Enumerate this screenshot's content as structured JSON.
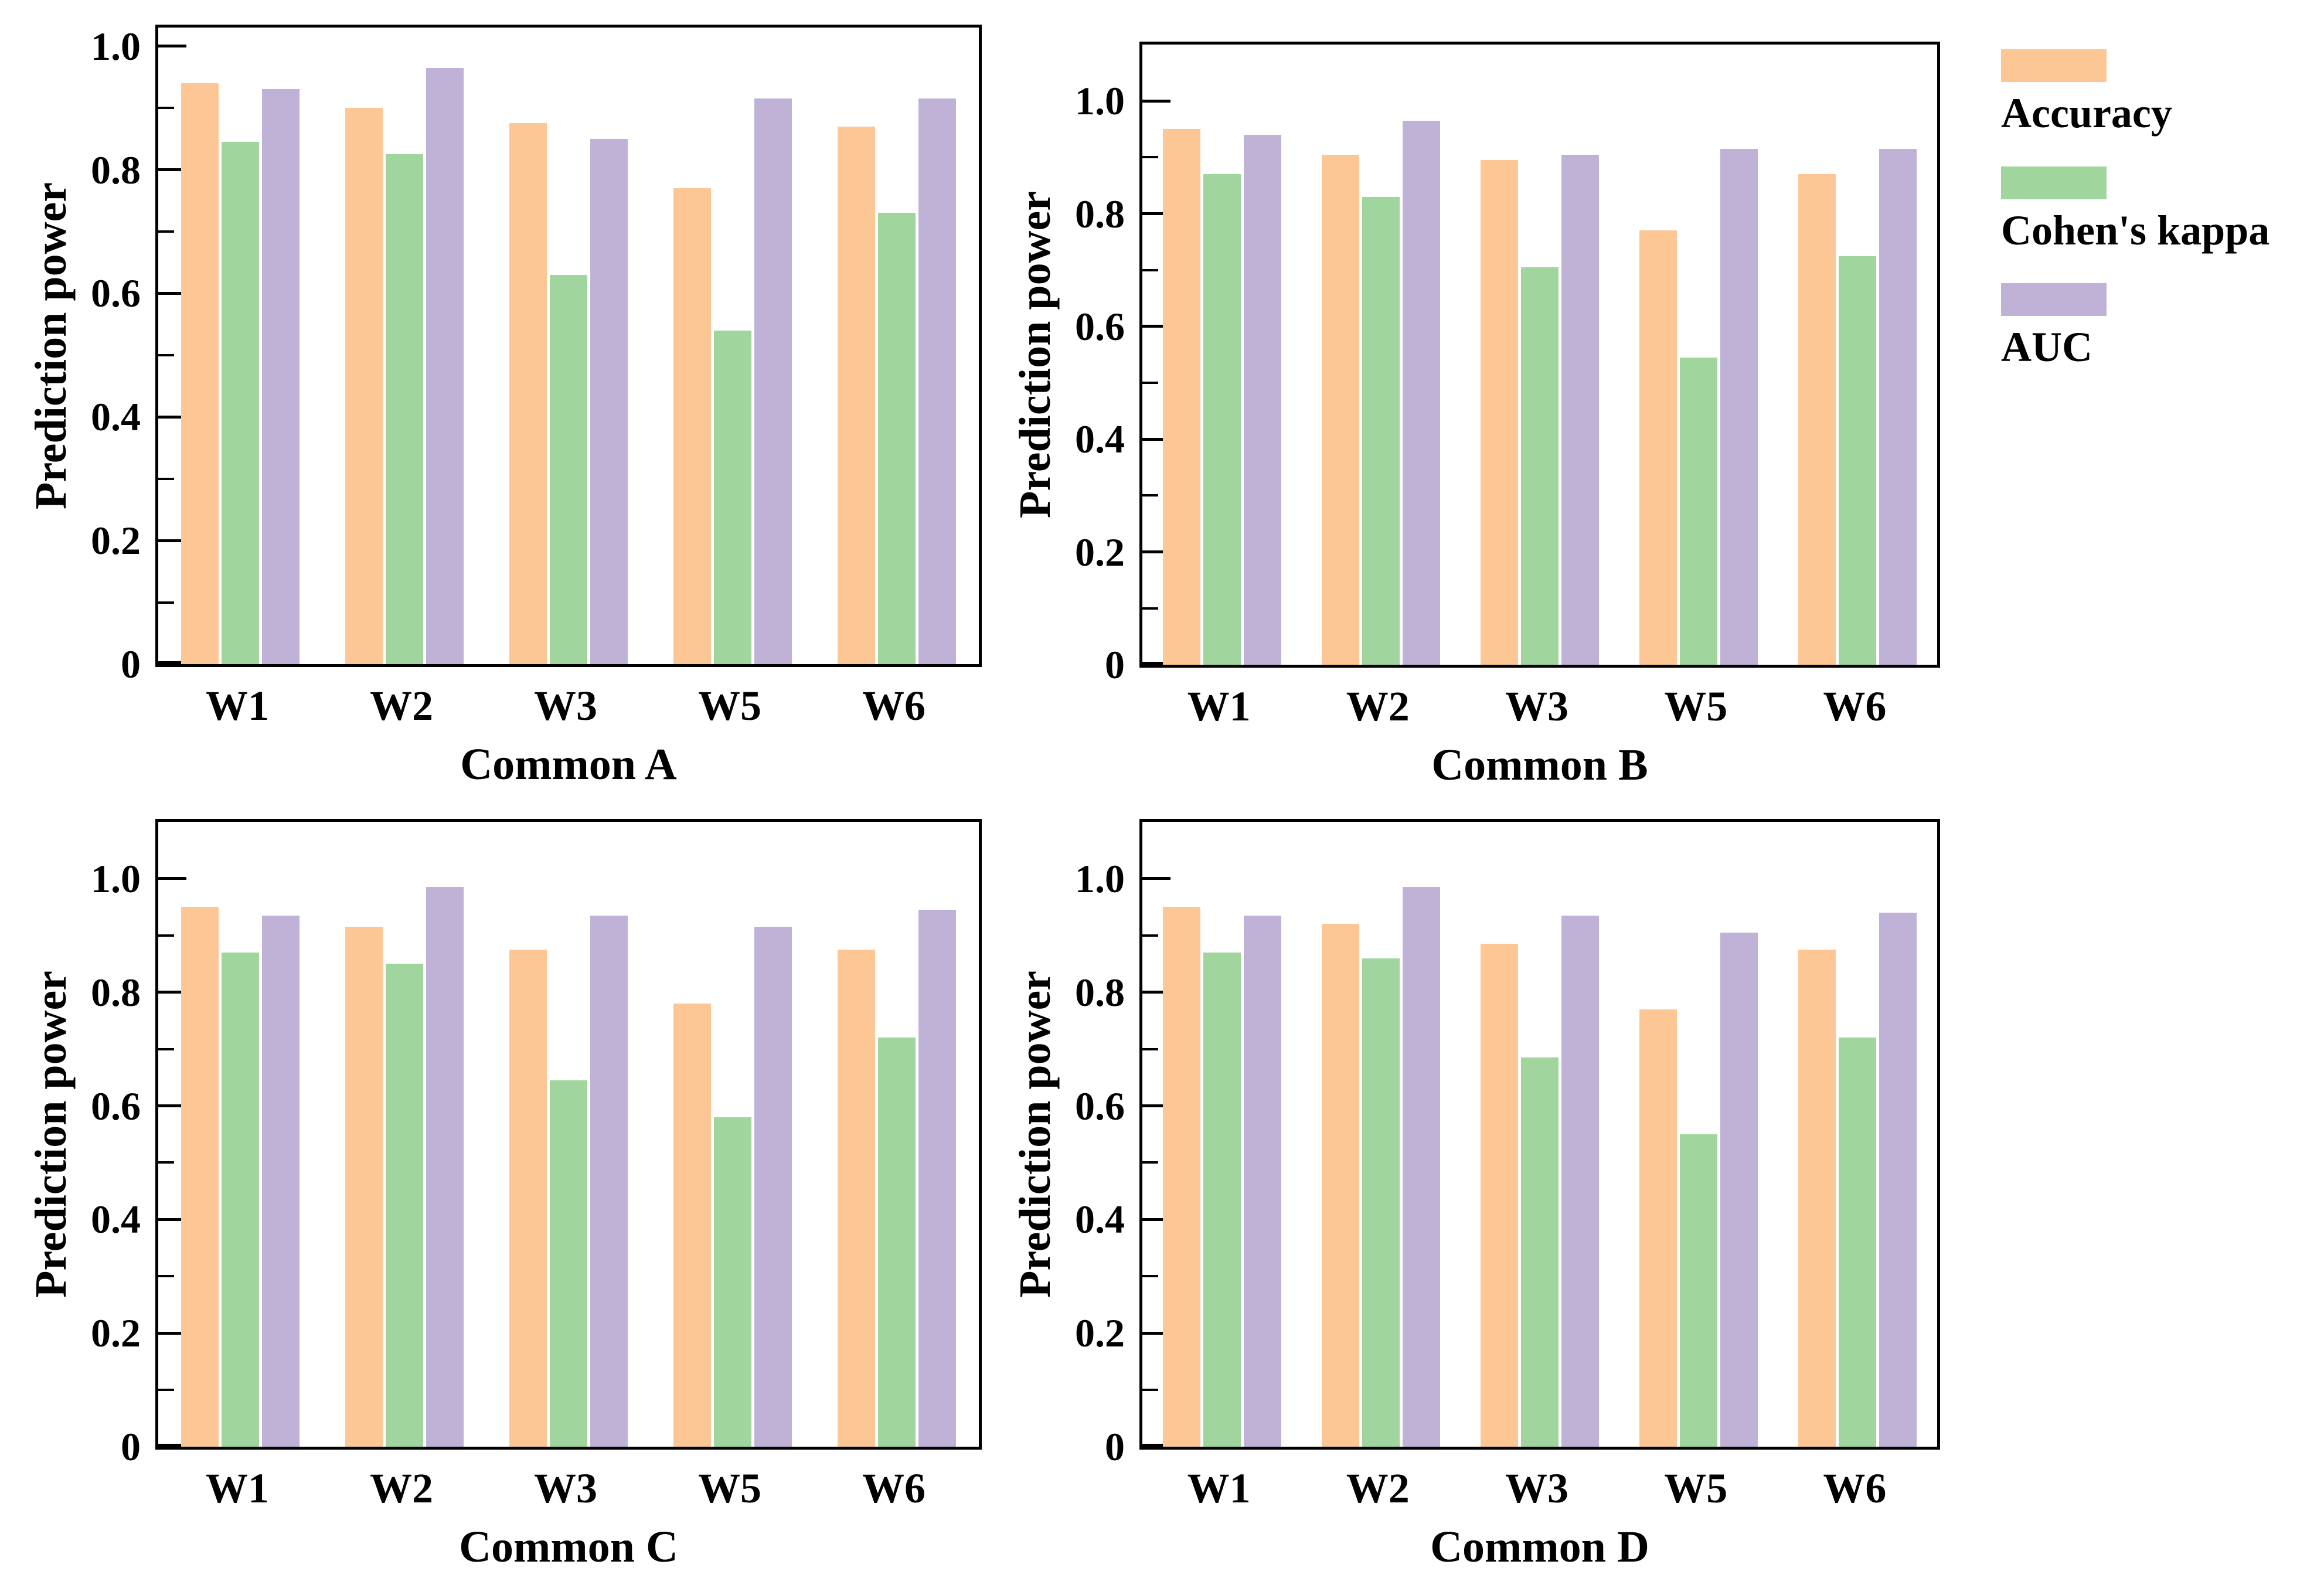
{
  "figure": {
    "background": "#ffffff",
    "ylabel": "Prediction power"
  },
  "legend": {
    "position": "right-outside",
    "items": [
      {
        "label": "Accuracy",
        "color": "#FCC795"
      },
      {
        "label": "Cohen's kappa",
        "color": "#A0D69D"
      },
      {
        "label": "AUC",
        "color": "#C0B2D6"
      }
    ]
  },
  "chart_data": [
    {
      "type": "bar",
      "xlabel": "Common A",
      "ylabel": "Prediction power",
      "categories": [
        "W1",
        "W2",
        "W3",
        "W5",
        "W6"
      ],
      "series": [
        {
          "name": "Accuracy",
          "values": [
            0.94,
            0.9,
            0.875,
            0.77,
            0.87
          ]
        },
        {
          "name": "Cohen's kappa",
          "values": [
            0.845,
            0.825,
            0.63,
            0.54,
            0.73
          ]
        },
        {
          "name": "AUC",
          "values": [
            0.93,
            0.965,
            0.85,
            0.915,
            0.915
          ]
        }
      ],
      "ylim": [
        0,
        1.03
      ],
      "yticks": [
        0,
        0.2,
        0.4,
        0.6,
        0.8,
        1.0
      ],
      "ytick_labels": [
        "0",
        "0.2",
        "0.4",
        "0.6",
        "0.8",
        "1.0"
      ],
      "yticks_minor": [
        0.1,
        0.3,
        0.5,
        0.7,
        0.9
      ],
      "grid": false
    },
    {
      "type": "bar",
      "xlabel": "Common B",
      "ylabel": "Prediction power",
      "categories": [
        "W1",
        "W2",
        "W3",
        "W5",
        "W6"
      ],
      "series": [
        {
          "name": "Accuracy",
          "values": [
            0.95,
            0.905,
            0.895,
            0.77,
            0.87
          ]
        },
        {
          "name": "Cohen's kappa",
          "values": [
            0.87,
            0.83,
            0.705,
            0.545,
            0.725
          ]
        },
        {
          "name": "AUC",
          "values": [
            0.94,
            0.965,
            0.905,
            0.915,
            0.915
          ]
        }
      ],
      "ylim": [
        0,
        1.1
      ],
      "yticks": [
        0,
        0.2,
        0.4,
        0.6,
        0.8,
        1.0
      ],
      "ytick_labels": [
        "0",
        "0.2",
        "0.4",
        "0.6",
        "0.8",
        "1.0"
      ],
      "yticks_minor": [
        0.1,
        0.3,
        0.5,
        0.7,
        0.9
      ],
      "grid": false
    },
    {
      "type": "bar",
      "xlabel": "Common C",
      "ylabel": "Prediction power",
      "categories": [
        "W1",
        "W2",
        "W3",
        "W5",
        "W6"
      ],
      "series": [
        {
          "name": "Accuracy",
          "values": [
            0.95,
            0.915,
            0.875,
            0.78,
            0.875
          ]
        },
        {
          "name": "Cohen's kappa",
          "values": [
            0.87,
            0.85,
            0.645,
            0.58,
            0.72
          ]
        },
        {
          "name": "AUC",
          "values": [
            0.935,
            0.985,
            0.935,
            0.915,
            0.945
          ]
        }
      ],
      "ylim": [
        0,
        1.1
      ],
      "yticks": [
        0,
        0.2,
        0.4,
        0.6,
        0.8,
        1.0
      ],
      "ytick_labels": [
        "0",
        "0.2",
        "0.4",
        "0.6",
        "0.8",
        "1.0"
      ],
      "yticks_minor": [
        0.1,
        0.3,
        0.5,
        0.7,
        0.9
      ],
      "grid": false
    },
    {
      "type": "bar",
      "xlabel": "Common D",
      "ylabel": "Prediction power",
      "categories": [
        "W1",
        "W2",
        "W3",
        "W5",
        "W6"
      ],
      "series": [
        {
          "name": "Accuracy",
          "values": [
            0.95,
            0.92,
            0.885,
            0.77,
            0.875
          ]
        },
        {
          "name": "Cohen's kappa",
          "values": [
            0.87,
            0.86,
            0.685,
            0.55,
            0.72
          ]
        },
        {
          "name": "AUC",
          "values": [
            0.935,
            0.985,
            0.935,
            0.905,
            0.94
          ]
        }
      ],
      "ylim": [
        0,
        1.1
      ],
      "yticks": [
        0,
        0.2,
        0.4,
        0.6,
        0.8,
        1.0
      ],
      "ytick_labels": [
        "0",
        "0.2",
        "0.4",
        "0.6",
        "0.8",
        "1.0"
      ],
      "yticks_minor": [
        0.1,
        0.3,
        0.5,
        0.7,
        0.9
      ],
      "grid": false
    }
  ]
}
